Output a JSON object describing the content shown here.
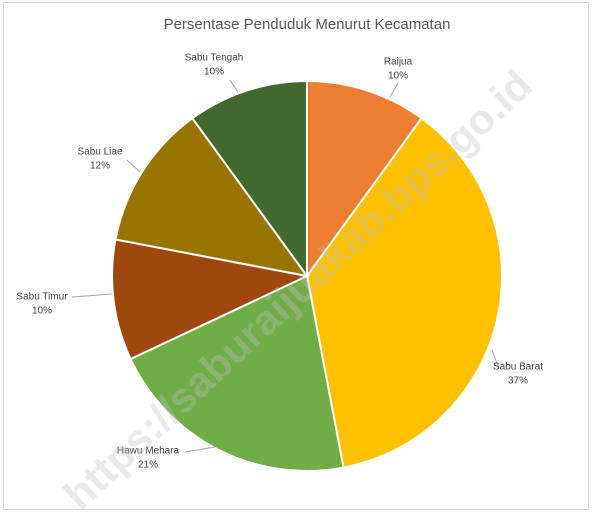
{
  "chart_data": {
    "type": "pie",
    "title": "Persentase Penduduk Menurut Kecamatan",
    "categories": [
      "Raijua",
      "Sabu Barat",
      "Hawu Mehara",
      "Sabu Timur",
      "Sabu Liae",
      "Sabu Tengah"
    ],
    "values": [
      10,
      37,
      21,
      10,
      12,
      10
    ],
    "value_labels": [
      "10%",
      "37%",
      "21%",
      "10%",
      "12%",
      "10%"
    ],
    "colors": [
      "#ED7D31",
      "#FFC000",
      "#70AD47",
      "#9E480E",
      "#997300",
      "#43682B"
    ],
    "watermark": "https://saburaijuakab.bps.go.id"
  }
}
